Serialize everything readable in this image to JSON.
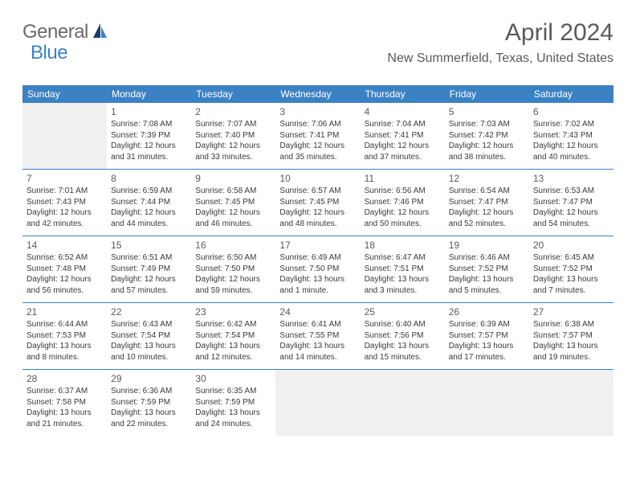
{
  "logo": {
    "text1": "General",
    "text2": "Blue"
  },
  "header": {
    "title": "April 2024",
    "location": "New Summerfield, Texas, United States"
  },
  "colors": {
    "header_bg": "#3b82c4",
    "header_text": "#ffffff",
    "border": "#3b82c4",
    "empty_bg": "#f0f0f0",
    "day_text": "#3a3a3a",
    "title_text": "#5a5a5a"
  },
  "dayNames": [
    "Sunday",
    "Monday",
    "Tuesday",
    "Wednesday",
    "Thursday",
    "Friday",
    "Saturday"
  ],
  "labels": {
    "sunrise": "Sunrise:",
    "sunset": "Sunset:",
    "daylight": "Daylight:"
  },
  "weeks": [
    [
      null,
      {
        "n": "1",
        "sr": "7:08 AM",
        "ss": "7:39 PM",
        "dl1": "12 hours",
        "dl2": "and 31 minutes."
      },
      {
        "n": "2",
        "sr": "7:07 AM",
        "ss": "7:40 PM",
        "dl1": "12 hours",
        "dl2": "and 33 minutes."
      },
      {
        "n": "3",
        "sr": "7:06 AM",
        "ss": "7:41 PM",
        "dl1": "12 hours",
        "dl2": "and 35 minutes."
      },
      {
        "n": "4",
        "sr": "7:04 AM",
        "ss": "7:41 PM",
        "dl1": "12 hours",
        "dl2": "and 37 minutes."
      },
      {
        "n": "5",
        "sr": "7:03 AM",
        "ss": "7:42 PM",
        "dl1": "12 hours",
        "dl2": "and 38 minutes."
      },
      {
        "n": "6",
        "sr": "7:02 AM",
        "ss": "7:43 PM",
        "dl1": "12 hours",
        "dl2": "and 40 minutes."
      }
    ],
    [
      {
        "n": "7",
        "sr": "7:01 AM",
        "ss": "7:43 PM",
        "dl1": "12 hours",
        "dl2": "and 42 minutes."
      },
      {
        "n": "8",
        "sr": "6:59 AM",
        "ss": "7:44 PM",
        "dl1": "12 hours",
        "dl2": "and 44 minutes."
      },
      {
        "n": "9",
        "sr": "6:58 AM",
        "ss": "7:45 PM",
        "dl1": "12 hours",
        "dl2": "and 46 minutes."
      },
      {
        "n": "10",
        "sr": "6:57 AM",
        "ss": "7:45 PM",
        "dl1": "12 hours",
        "dl2": "and 48 minutes."
      },
      {
        "n": "11",
        "sr": "6:56 AM",
        "ss": "7:46 PM",
        "dl1": "12 hours",
        "dl2": "and 50 minutes."
      },
      {
        "n": "12",
        "sr": "6:54 AM",
        "ss": "7:47 PM",
        "dl1": "12 hours",
        "dl2": "and 52 minutes."
      },
      {
        "n": "13",
        "sr": "6:53 AM",
        "ss": "7:47 PM",
        "dl1": "12 hours",
        "dl2": "and 54 minutes."
      }
    ],
    [
      {
        "n": "14",
        "sr": "6:52 AM",
        "ss": "7:48 PM",
        "dl1": "12 hours",
        "dl2": "and 56 minutes."
      },
      {
        "n": "15",
        "sr": "6:51 AM",
        "ss": "7:49 PM",
        "dl1": "12 hours",
        "dl2": "and 57 minutes."
      },
      {
        "n": "16",
        "sr": "6:50 AM",
        "ss": "7:50 PM",
        "dl1": "12 hours",
        "dl2": "and 59 minutes."
      },
      {
        "n": "17",
        "sr": "6:49 AM",
        "ss": "7:50 PM",
        "dl1": "13 hours",
        "dl2": "and 1 minute."
      },
      {
        "n": "18",
        "sr": "6:47 AM",
        "ss": "7:51 PM",
        "dl1": "13 hours",
        "dl2": "and 3 minutes."
      },
      {
        "n": "19",
        "sr": "6:46 AM",
        "ss": "7:52 PM",
        "dl1": "13 hours",
        "dl2": "and 5 minutes."
      },
      {
        "n": "20",
        "sr": "6:45 AM",
        "ss": "7:52 PM",
        "dl1": "13 hours",
        "dl2": "and 7 minutes."
      }
    ],
    [
      {
        "n": "21",
        "sr": "6:44 AM",
        "ss": "7:53 PM",
        "dl1": "13 hours",
        "dl2": "and 8 minutes."
      },
      {
        "n": "22",
        "sr": "6:43 AM",
        "ss": "7:54 PM",
        "dl1": "13 hours",
        "dl2": "and 10 minutes."
      },
      {
        "n": "23",
        "sr": "6:42 AM",
        "ss": "7:54 PM",
        "dl1": "13 hours",
        "dl2": "and 12 minutes."
      },
      {
        "n": "24",
        "sr": "6:41 AM",
        "ss": "7:55 PM",
        "dl1": "13 hours",
        "dl2": "and 14 minutes."
      },
      {
        "n": "25",
        "sr": "6:40 AM",
        "ss": "7:56 PM",
        "dl1": "13 hours",
        "dl2": "and 15 minutes."
      },
      {
        "n": "26",
        "sr": "6:39 AM",
        "ss": "7:57 PM",
        "dl1": "13 hours",
        "dl2": "and 17 minutes."
      },
      {
        "n": "27",
        "sr": "6:38 AM",
        "ss": "7:57 PM",
        "dl1": "13 hours",
        "dl2": "and 19 minutes."
      }
    ],
    [
      {
        "n": "28",
        "sr": "6:37 AM",
        "ss": "7:58 PM",
        "dl1": "13 hours",
        "dl2": "and 21 minutes."
      },
      {
        "n": "29",
        "sr": "6:36 AM",
        "ss": "7:59 PM",
        "dl1": "13 hours",
        "dl2": "and 22 minutes."
      },
      {
        "n": "30",
        "sr": "6:35 AM",
        "ss": "7:59 PM",
        "dl1": "13 hours",
        "dl2": "and 24 minutes."
      },
      null,
      null,
      null,
      null
    ]
  ]
}
